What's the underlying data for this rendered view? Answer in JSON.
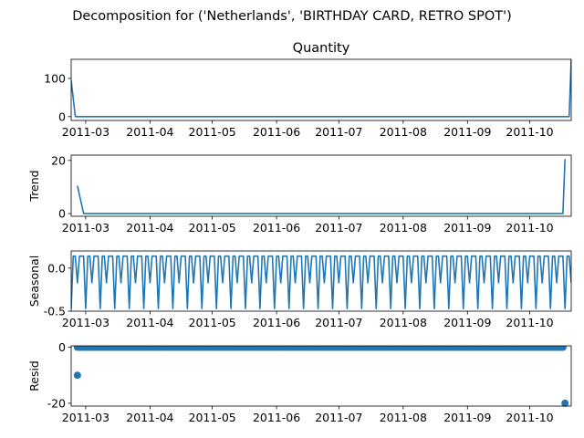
{
  "figure": {
    "suptitle": "Decomposition for ('Netherlands', 'BIRTHDAY CARD, RETRO SPOT')"
  },
  "colors": {
    "series": "#1f77b4"
  },
  "chart_data": [
    {
      "type": "line",
      "title": "Quantity",
      "ylabel": "",
      "xlim": [
        "2011-02-22",
        "2011-10-21"
      ],
      "ylim": [
        -10,
        150
      ],
      "yticks": [
        0,
        100
      ],
      "xticks": [
        "2011-03",
        "2011-04",
        "2011-05",
        "2011-06",
        "2011-07",
        "2011-08",
        "2011-09",
        "2011-10"
      ],
      "points": [
        {
          "x": "2011-02-22",
          "y": 95
        },
        {
          "x": "2011-02-24",
          "y": 0
        },
        {
          "x": "2011-10-20",
          "y": 0
        },
        {
          "x": "2011-10-21",
          "y": 150
        }
      ]
    },
    {
      "type": "line",
      "title": "",
      "ylabel": "Trend",
      "xlim": [
        "2011-02-22",
        "2011-10-21"
      ],
      "ylim": [
        -1,
        22
      ],
      "yticks": [
        0,
        20
      ],
      "xticks": [
        "2011-03",
        "2011-04",
        "2011-05",
        "2011-06",
        "2011-07",
        "2011-08",
        "2011-09",
        "2011-10"
      ],
      "points": [
        {
          "x": "2011-02-25",
          "y": 10.5
        },
        {
          "x": "2011-02-28",
          "y": 0
        },
        {
          "x": "2011-10-17",
          "y": 0
        },
        {
          "x": "2011-10-18",
          "y": 20.5
        }
      ]
    },
    {
      "type": "line",
      "title": "",
      "ylabel": "Seasonal",
      "xlim": [
        "2011-02-22",
        "2011-10-21"
      ],
      "ylim": [
        -0.5,
        0.2
      ],
      "yticks": [
        0.0,
        -0.5
      ],
      "xticks": [
        "2011-03",
        "2011-04",
        "2011-05",
        "2011-06",
        "2011-07",
        "2011-08",
        "2011-09",
        "2011-10"
      ],
      "seasonal": {
        "start": "2011-02-22",
        "end": "2011-10-21",
        "period_days": 7,
        "pattern": [
          -0.47,
          0.14,
          0.14,
          -0.17,
          0.14,
          0.14,
          0.14
        ]
      }
    },
    {
      "type": "scatter",
      "title": "",
      "ylabel": "Resid",
      "xlim": [
        "2011-02-22",
        "2011-10-21"
      ],
      "ylim": [
        -21,
        0.5
      ],
      "yticks": [
        0,
        -20
      ],
      "xticks": [
        "2011-03",
        "2011-04",
        "2011-05",
        "2011-06",
        "2011-07",
        "2011-08",
        "2011-09",
        "2011-10"
      ],
      "zero_run": {
        "start": "2011-02-25",
        "end": "2011-10-17"
      },
      "outliers": [
        {
          "x": "2011-02-25",
          "y": -10
        },
        {
          "x": "2011-10-18",
          "y": -20
        }
      ]
    }
  ]
}
